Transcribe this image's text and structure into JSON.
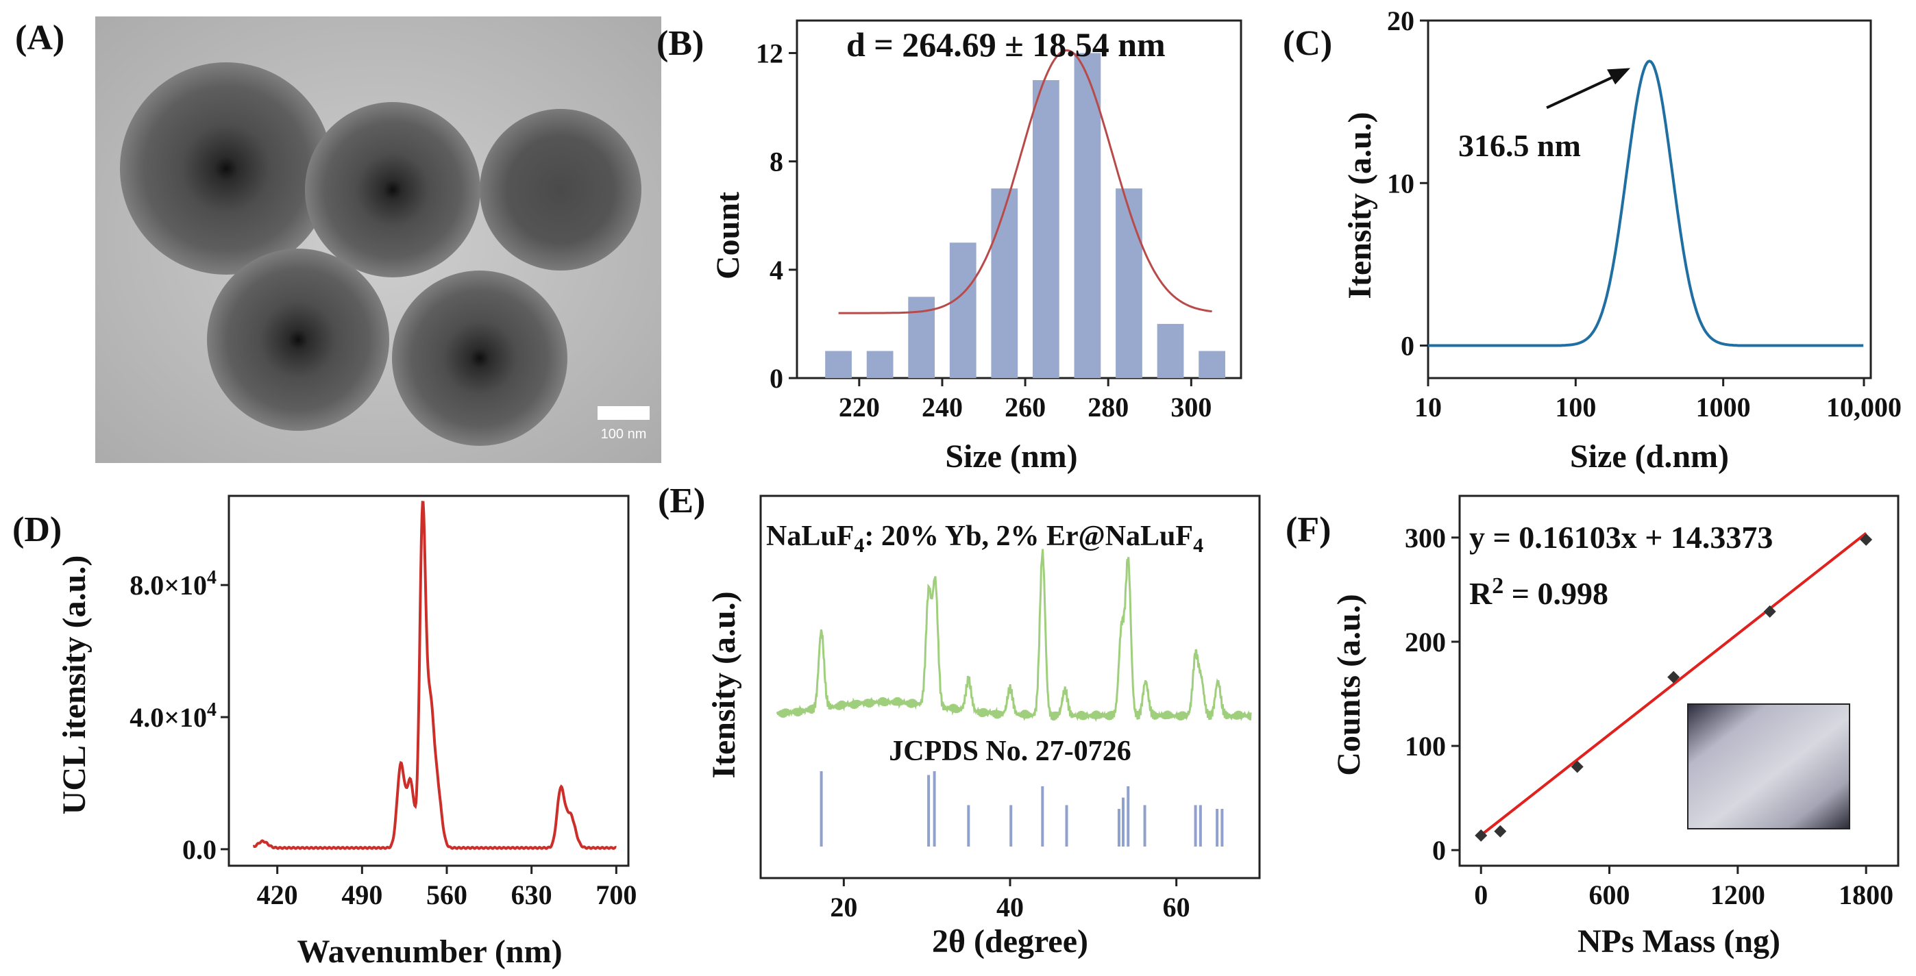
{
  "panels": {
    "A": {
      "label": "(A)",
      "type": "tem_image",
      "scale_bar_label": "100 nm"
    }
  },
  "chart_data": [
    {
      "panel": "B",
      "label": "(B)",
      "type": "bar",
      "title": "d = 264.69 ± 18.54 nm",
      "xlabel": "Size (nm)",
      "ylabel": "Count",
      "x_ticks": [
        220,
        240,
        260,
        280,
        300
      ],
      "y_ticks": [
        0,
        4,
        8,
        12
      ],
      "xlim": [
        205,
        312
      ],
      "ylim": [
        0,
        13.2
      ],
      "categories": [
        215,
        225,
        235,
        245,
        255,
        265,
        275,
        285,
        295,
        305
      ],
      "values": [
        1,
        1,
        3,
        5,
        7,
        11,
        12,
        7,
        2,
        1
      ],
      "bar_color": "#98a9cd",
      "fit": {
        "type": "gaussian",
        "center": 270,
        "width": 11,
        "height": 9.7,
        "offset": 2.4,
        "x_range": [
          215,
          305
        ],
        "color": "#b84a4a"
      }
    },
    {
      "panel": "C",
      "label": "(C)",
      "type": "line",
      "xlabel": "Size (d.nm)",
      "ylabel": "Itensity (a.u.)",
      "x_scale": "log",
      "x_ticks": [
        "10",
        "100",
        "1000",
        "10,000"
      ],
      "y_ticks": [
        0,
        10,
        20
      ],
      "xlim": [
        10,
        10000
      ],
      "ylim": [
        -2,
        20
      ],
      "peak_x": 316.5,
      "peak_y": 17.5,
      "annotation": "316.5 nm",
      "line_color": "#1f6fa3"
    },
    {
      "panel": "D",
      "label": "(D)",
      "type": "line",
      "xlabel": "Wavenumber (nm)",
      "ylabel": "UCL itensity (a.u.)",
      "x_ticks": [
        420,
        490,
        560,
        630,
        700
      ],
      "y_ticks": [
        "0.0",
        "4.0×10^4",
        "8.0×10^4"
      ],
      "y_tick_labels": [
        {
          "mantissa": "0.0",
          "exp": ""
        },
        {
          "mantissa": "4.0×10",
          "exp": "4"
        },
        {
          "mantissa": "8.0×10",
          "exp": "4"
        }
      ],
      "xlim": [
        380,
        710
      ],
      "ylim": [
        -5000,
        107000
      ],
      "peaks": [
        {
          "x": 408,
          "y": 2000,
          "w": 4
        },
        {
          "x": 522,
          "y": 25000,
          "w": 3
        },
        {
          "x": 530,
          "y": 20000,
          "w": 3
        },
        {
          "x": 540,
          "y": 99000,
          "w": 2.4
        },
        {
          "x": 546,
          "y": 40000,
          "w": 3
        },
        {
          "x": 552,
          "y": 18000,
          "w": 3.5
        },
        {
          "x": 654,
          "y": 17000,
          "w": 3
        },
        {
          "x": 662,
          "y": 10000,
          "w": 4
        }
      ],
      "x_range": [
        400,
        700
      ],
      "line_color": "#cc2f2a"
    },
    {
      "panel": "E",
      "label": "(E)",
      "type": "line",
      "xlabel": "2θ (degree)",
      "ylabel": "Itensity (a.u.)",
      "x_ticks": [
        20,
        40,
        60
      ],
      "xlim": [
        10,
        70
      ],
      "sample_label": {
        "pre": "NaLuF",
        "sub1": "4",
        "mid": ": 20% Yb, 2% Er@NaLuF",
        "sub2": "4"
      },
      "reference_label": "JCPDS No. 27-0726",
      "xrd_peaks": [
        {
          "x": 17.3,
          "h": 0.45
        },
        {
          "x": 30.2,
          "h": 0.65
        },
        {
          "x": 31.0,
          "h": 0.72
        },
        {
          "x": 35.0,
          "h": 0.18
        },
        {
          "x": 40.0,
          "h": 0.15
        },
        {
          "x": 43.9,
          "h": 0.95
        },
        {
          "x": 46.6,
          "h": 0.15
        },
        {
          "x": 53.4,
          "h": 0.5
        },
        {
          "x": 54.2,
          "h": 0.9
        },
        {
          "x": 56.3,
          "h": 0.2
        },
        {
          "x": 62.3,
          "h": 0.35
        },
        {
          "x": 63.0,
          "h": 0.2
        },
        {
          "x": 65.0,
          "h": 0.2
        }
      ],
      "reference_lines": [
        {
          "x": 17.3,
          "h": 1.0
        },
        {
          "x": 30.2,
          "h": 0.95
        },
        {
          "x": 30.9,
          "h": 1.0
        },
        {
          "x": 35.0,
          "h": 0.55
        },
        {
          "x": 40.1,
          "h": 0.55
        },
        {
          "x": 43.9,
          "h": 0.8
        },
        {
          "x": 46.8,
          "h": 0.55
        },
        {
          "x": 53.1,
          "h": 0.5
        },
        {
          "x": 53.6,
          "h": 0.65
        },
        {
          "x": 54.2,
          "h": 0.8
        },
        {
          "x": 56.2,
          "h": 0.55
        },
        {
          "x": 62.3,
          "h": 0.55
        },
        {
          "x": 62.9,
          "h": 0.55
        },
        {
          "x": 64.9,
          "h": 0.5
        },
        {
          "x": 65.5,
          "h": 0.5
        }
      ],
      "pattern_color": "#9fcf7c",
      "reference_color": "#8fa1cc"
    },
    {
      "panel": "F",
      "label": "(F)",
      "type": "scatter",
      "xlabel": "NPs Mass (ng)",
      "ylabel": "Counts (a.u.)",
      "x_ticks": [
        0,
        600,
        1200,
        1800
      ],
      "y_ticks": [
        0,
        100,
        200,
        300
      ],
      "xlim": [
        -100,
        1950
      ],
      "ylim": [
        -15,
        340
      ],
      "x": [
        0,
        90,
        450,
        900,
        1350,
        1800
      ],
      "y": [
        14,
        18,
        80,
        166,
        229,
        298
      ],
      "fit": {
        "slope": 0.16103,
        "intercept": 14.3373,
        "x_range": [
          0,
          1800
        ],
        "color": "#e0211d"
      },
      "equation": "y = 0.16103x + 14.3373",
      "r2_label": "R",
      "r2_exp": "2",
      "r2_value": " = 0.998"
    }
  ]
}
